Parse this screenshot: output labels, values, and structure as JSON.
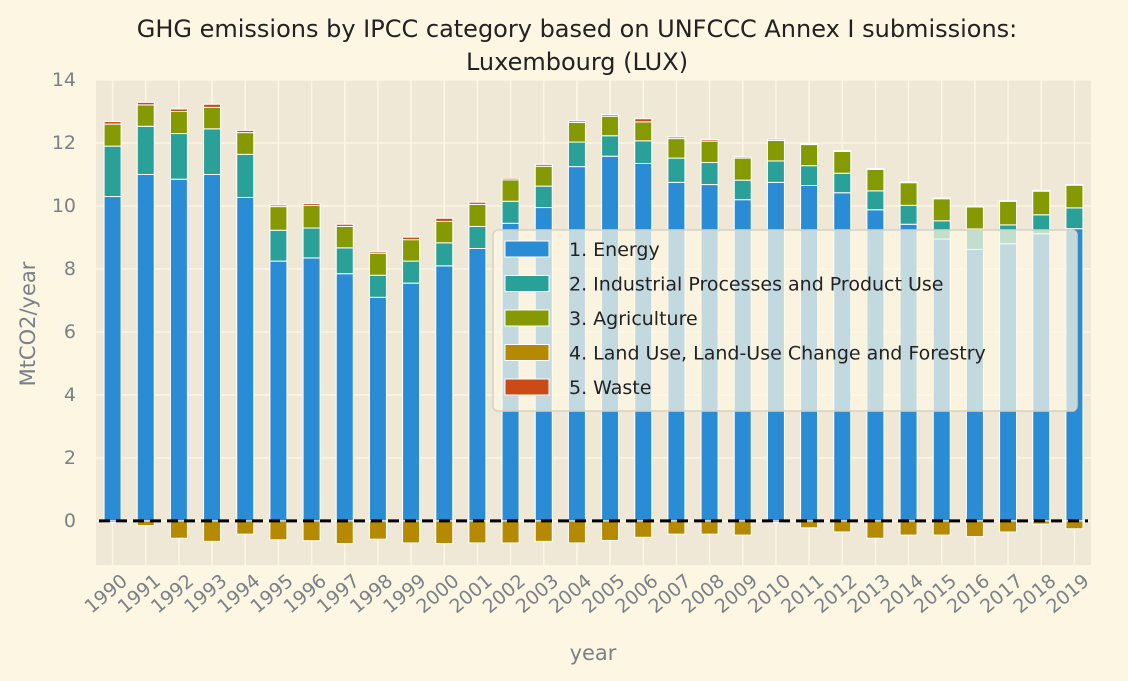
{
  "chart_data": {
    "type": "bar",
    "stacked": true,
    "title_line1": "GHG emissions by IPCC category based on UNFCCC Annex I submissions:",
    "title_line2": "Luxembourg (LUX)",
    "xlabel": "year",
    "ylabel": "MtCO2/year",
    "ylim": [
      -1.4,
      14
    ],
    "yticks": [
      0,
      2,
      4,
      6,
      8,
      10,
      12,
      14
    ],
    "grid": true,
    "legend_position": "center-right",
    "background": "#efe8d6",
    "zero_line": "dashed",
    "categories": [
      "1990",
      "1991",
      "1992",
      "1993",
      "1994",
      "1995",
      "1996",
      "1997",
      "1998",
      "1999",
      "2000",
      "2001",
      "2002",
      "2003",
      "2004",
      "2005",
      "2006",
      "2007",
      "2008",
      "2009",
      "2010",
      "2011",
      "2012",
      "2013",
      "2014",
      "2015",
      "2016",
      "2017",
      "2018",
      "2019"
    ],
    "series": [
      {
        "name": "1. Energy",
        "color": "#2b8cd6",
        "values": [
          10.3,
          11.0,
          10.85,
          11.0,
          10.27,
          8.25,
          8.35,
          7.85,
          7.1,
          7.55,
          8.1,
          8.65,
          9.45,
          9.95,
          11.25,
          11.58,
          11.35,
          10.75,
          10.68,
          10.2,
          10.75,
          10.65,
          10.42,
          9.88,
          9.42,
          8.95,
          8.62,
          8.8,
          9.12,
          9.28
        ]
      },
      {
        "name": "2. Industrial Processes and Product Use",
        "color": "#2aa198",
        "values": [
          1.6,
          1.53,
          1.45,
          1.45,
          1.37,
          0.98,
          0.95,
          0.82,
          0.7,
          0.7,
          0.73,
          0.7,
          0.7,
          0.68,
          0.78,
          0.65,
          0.72,
          0.77,
          0.7,
          0.62,
          0.68,
          0.63,
          0.62,
          0.6,
          0.6,
          0.58,
          0.65,
          0.6,
          0.6,
          0.66
        ]
      },
      {
        "name": "3. Agriculture",
        "color": "#859900",
        "values": [
          0.7,
          0.68,
          0.7,
          0.68,
          0.69,
          0.75,
          0.72,
          0.68,
          0.7,
          0.68,
          0.68,
          0.7,
          0.68,
          0.63,
          0.62,
          0.62,
          0.6,
          0.62,
          0.68,
          0.7,
          0.65,
          0.67,
          0.69,
          0.68,
          0.72,
          0.7,
          0.7,
          0.75,
          0.75,
          0.72
        ]
      },
      {
        "name": "4. Land Use, Land-Use Change and Forestry",
        "color": "#b58900",
        "values": [
          -0.05,
          -0.15,
          -0.55,
          -0.65,
          -0.42,
          -0.6,
          -0.63,
          -0.72,
          -0.58,
          -0.7,
          -0.72,
          -0.7,
          -0.7,
          -0.65,
          -0.7,
          -0.62,
          -0.52,
          -0.42,
          -0.42,
          -0.45,
          -0.05,
          -0.22,
          -0.35,
          -0.55,
          -0.45,
          -0.45,
          -0.5,
          -0.35,
          -0.1,
          -0.25
        ]
      },
      {
        "name": "5. Waste",
        "color": "#cb4b16",
        "values": [
          0.08,
          0.08,
          0.08,
          0.1,
          0.07,
          0.05,
          0.06,
          0.07,
          0.05,
          0.08,
          0.1,
          0.07,
          0.05,
          0.06,
          0.05,
          0.05,
          0.1,
          0.05,
          0.05,
          0.04,
          0.04,
          0.03,
          0.03,
          0.03,
          0.02,
          0.02,
          0.02,
          0.02,
          0.03,
          0.02
        ]
      }
    ]
  }
}
